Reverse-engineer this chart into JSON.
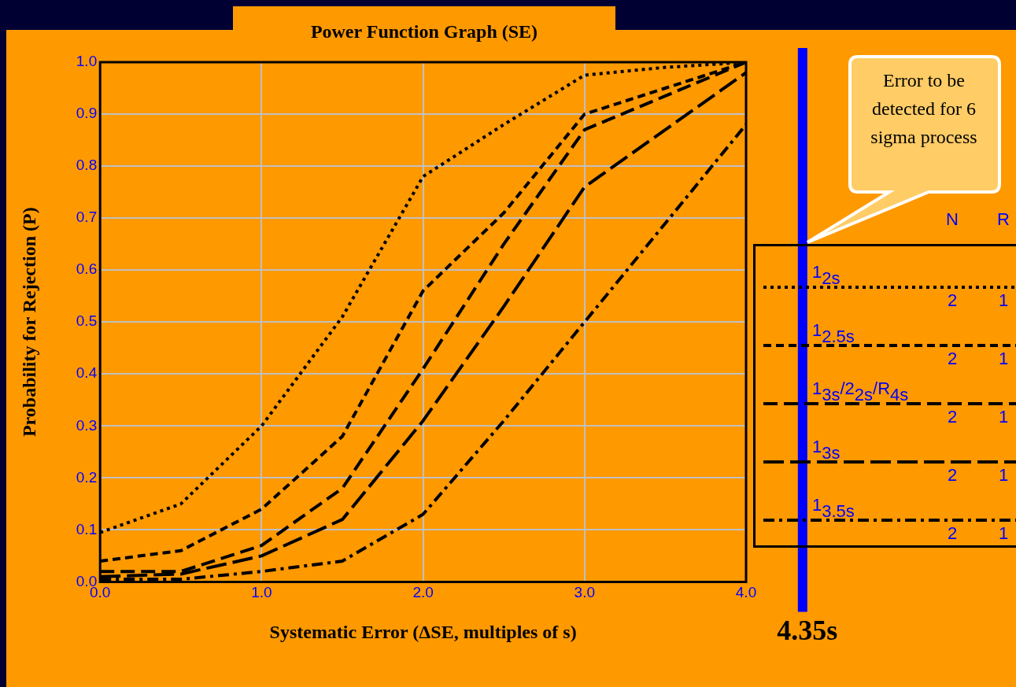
{
  "chart_data": {
    "type": "line",
    "title": "Power Function Graph (SE)",
    "xlabel": "Systematic Error (ΔSE, multiples of s)",
    "ylabel": "Probability for Rejection (P)",
    "x": [
      0,
      0.5,
      1,
      1.5,
      2,
      2.5,
      3,
      3.5,
      4
    ],
    "series": [
      {
        "name": "1$_{2s}$",
        "color": "#000000",
        "line_style": "dotted",
        "values": [
          0.095,
          0.15,
          0.3,
          0.51,
          0.78,
          0.88,
          0.975,
          0.99,
          1.0
        ]
      },
      {
        "name": "1$_{2.5s}$",
        "color": "#000000",
        "line_style": "dashed",
        "values": [
          0.04,
          0.06,
          0.14,
          0.28,
          0.56,
          0.71,
          0.9,
          0.95,
          1.0
        ]
      },
      {
        "name": "1$_{3s}$/2$_{2s}$/R$_{4s}$",
        "color": "#000000",
        "line_style": "long-dashed",
        "values": [
          0.02,
          0.02,
          0.07,
          0.18,
          0.41,
          0.65,
          0.87,
          0.935,
          1.0
        ]
      },
      {
        "name": "1$_{3s}$",
        "color": "#000000",
        "line_style": "longer-dashed",
        "values": [
          0.01,
          0.015,
          0.05,
          0.12,
          0.31,
          0.53,
          0.76,
          0.87,
          0.98
        ]
      },
      {
        "name": "1$_{3.5s}$",
        "color": "#000000",
        "line_style": "dash-dot",
        "values": [
          0.005,
          0.005,
          0.02,
          0.04,
          0.13,
          0.31,
          0.5,
          0.69,
          0.88
        ]
      }
    ],
    "xlim": [
      0,
      4
    ],
    "xticks": [
      {
        "value": 0,
        "label": "0.0"
      },
      {
        "value": 1,
        "label": "1.0"
      },
      {
        "value": 2,
        "label": "2.0"
      },
      {
        "value": 3,
        "label": "3.0"
      },
      {
        "value": 4,
        "label": "4.0"
      }
    ],
    "ylim": [
      0,
      1
    ],
    "yticks": [
      {
        "value": 0,
        "label": "0.0"
      },
      {
        "value": 0.1,
        "label": "0.1"
      },
      {
        "value": 0.2,
        "label": "0.2"
      },
      {
        "value": 0.3,
        "label": "0.3"
      },
      {
        "value": 0.4,
        "label": "0.4"
      },
      {
        "value": 0.5,
        "label": "0.5"
      },
      {
        "value": 0.6,
        "label": "0.6"
      },
      {
        "value": 0.7,
        "label": "0.7"
      },
      {
        "value": 0.8,
        "label": "0.8"
      },
      {
        "value": 0.9,
        "label": "0.9"
      },
      {
        "value": 1,
        "label": "1.0"
      }
    ],
    "grid": true,
    "legend": "right",
    "marker": "none",
    "ref_lines": [
      {
        "axis": "x",
        "value": 4.35,
        "label": "4.35s",
        "color": "#0000ff"
      }
    ],
    "annotations": [
      "Error to be detected for 6 sigma process",
      "N",
      "R",
      "2",
      "1",
      "2",
      "1",
      "2",
      "1",
      "2",
      "1",
      "2",
      "1"
    ]
  }
}
